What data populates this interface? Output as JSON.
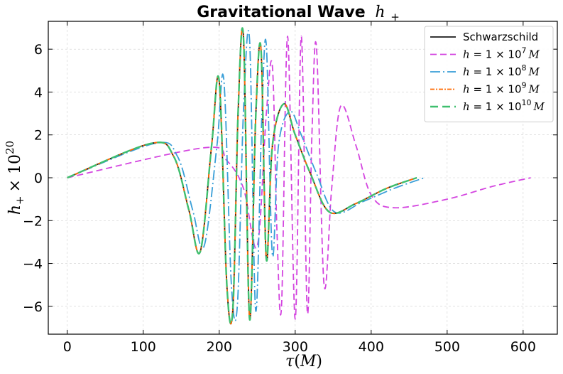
{
  "chart_data": {
    "type": "line",
    "title": "Gravitational Wave h+",
    "title_main": "Gravitational Wave",
    "title_symbol": "h",
    "title_sub": "+",
    "xlabel": "τ(M)",
    "xlabel_sym": "τ",
    "xlabel_unit": "(M)",
    "ylabel": "h+ × 10^20",
    "ylabel_sym": "h",
    "ylabel_sub": "+",
    "ylabel_rest": "× 10",
    "ylabel_sup": "20",
    "xlim": [
      -25,
      645
    ],
    "ylim": [
      -7.3,
      7.3
    ],
    "xticks": [
      0,
      100,
      200,
      300,
      400,
      500,
      600
    ],
    "xtick_labels": [
      "0",
      "100",
      "200",
      "300",
      "400",
      "500",
      "600"
    ],
    "yticks": [
      -6,
      -4,
      -2,
      0,
      2,
      4,
      6
    ],
    "ytick_labels": [
      "−6",
      "−4",
      "−2",
      "0",
      "2",
      "4",
      "6"
    ],
    "grid": true,
    "legend_position": "top-right",
    "series": [
      {
        "name": "Schwarzschild",
        "legend_text": "Schwarzschild",
        "color": "#1a1a1a",
        "dash": "",
        "width": 1.8,
        "x": [
          0,
          110,
          140,
          160,
          175,
          190,
          200,
          210,
          218,
          225,
          232,
          240,
          248,
          255,
          262,
          270,
          285,
          300,
          320,
          345,
          380,
          420,
          460
        ],
        "y": [
          0,
          1.6,
          1.0,
          -1.5,
          -3.45,
          1.5,
          4.5,
          -5.0,
          -6.1,
          3.2,
          6.5,
          -6.6,
          2.8,
          6.0,
          -3.8,
          1.5,
          3.45,
          2.0,
          0.2,
          -1.6,
          -1.2,
          -0.5,
          0
        ]
      },
      {
        "name": "h = 1 × 10^7 M",
        "legend_text": "h = 1 × 10",
        "legend_sup": "7",
        "legend_unit": "M",
        "color": "#d446e0",
        "dash": "9 5",
        "width": 1.8,
        "x": [
          0,
          180,
          210,
          232,
          250,
          262,
          270,
          276,
          282,
          290,
          300,
          308,
          316,
          322,
          328,
          338,
          348,
          360,
          380,
          400,
          430,
          500,
          560,
          610
        ],
        "y": [
          0,
          1.4,
          0.8,
          -0.5,
          -3.2,
          3.0,
          5.2,
          -2.5,
          -6.0,
          6.6,
          -6.6,
          6.6,
          -6.3,
          2.0,
          6.1,
          -5.0,
          -0.5,
          3.35,
          1.5,
          -0.8,
          -1.4,
          -1.0,
          -0.4,
          0
        ]
      },
      {
        "name": "h = 1 × 10^8 M",
        "legend_text": "h = 1 × 10",
        "legend_sup": "8",
        "legend_unit": "M",
        "color": "#3a9fd8",
        "dash": "14 4 2 4",
        "width": 1.8,
        "x": [
          0,
          115,
          145,
          165,
          180,
          197,
          206,
          216,
          224,
          232,
          240,
          248,
          256,
          262,
          270,
          278,
          293,
          308,
          328,
          352,
          390,
          430,
          470
        ],
        "y": [
          0,
          1.6,
          1.0,
          -1.5,
          -3.2,
          1.5,
          4.6,
          -5.0,
          -5.9,
          3.2,
          6.4,
          -6.2,
          2.8,
          6.2,
          -3.6,
          1.5,
          3.1,
          2.0,
          0.2,
          -1.6,
          -1.1,
          -0.5,
          0
        ]
      },
      {
        "name": "h = 1 × 10^9 M",
        "legend_text": "h = 1 × 10",
        "legend_sup": "9",
        "legend_unit": "M",
        "color": "#ff6a00",
        "dash": "6 2 2 2",
        "width": 1.8,
        "x": [
          0,
          110,
          140,
          160,
          175,
          190,
          200,
          210,
          218,
          225,
          232,
          240,
          248,
          255,
          262,
          270,
          285,
          300,
          320,
          345,
          380,
          420,
          460
        ],
        "y": [
          0,
          1.6,
          1.0,
          -1.5,
          -3.45,
          1.5,
          4.5,
          -5.0,
          -6.1,
          3.2,
          6.5,
          -6.6,
          2.8,
          6.0,
          -3.8,
          1.5,
          3.45,
          2.0,
          0.2,
          -1.6,
          -1.2,
          -0.5,
          0
        ]
      },
      {
        "name": "h = 1 × 10^10 M",
        "legend_text": "h = 1 × 10",
        "legend_sup": "10",
        "legend_unit": "M",
        "color": "#3fbf6e",
        "dash": "11 6",
        "width": 2.4,
        "x": [
          0,
          110,
          140,
          160,
          175,
          190,
          200,
          210,
          218,
          225,
          232,
          240,
          248,
          255,
          262,
          270,
          285,
          300,
          320,
          345,
          380,
          420,
          460
        ],
        "y": [
          0,
          1.6,
          1.0,
          -1.5,
          -3.45,
          1.5,
          4.5,
          -5.0,
          -6.1,
          3.2,
          6.5,
          -6.6,
          2.8,
          6.0,
          -3.8,
          1.5,
          3.45,
          2.0,
          0.2,
          -1.6,
          -1.2,
          -0.5,
          0
        ]
      }
    ]
  }
}
